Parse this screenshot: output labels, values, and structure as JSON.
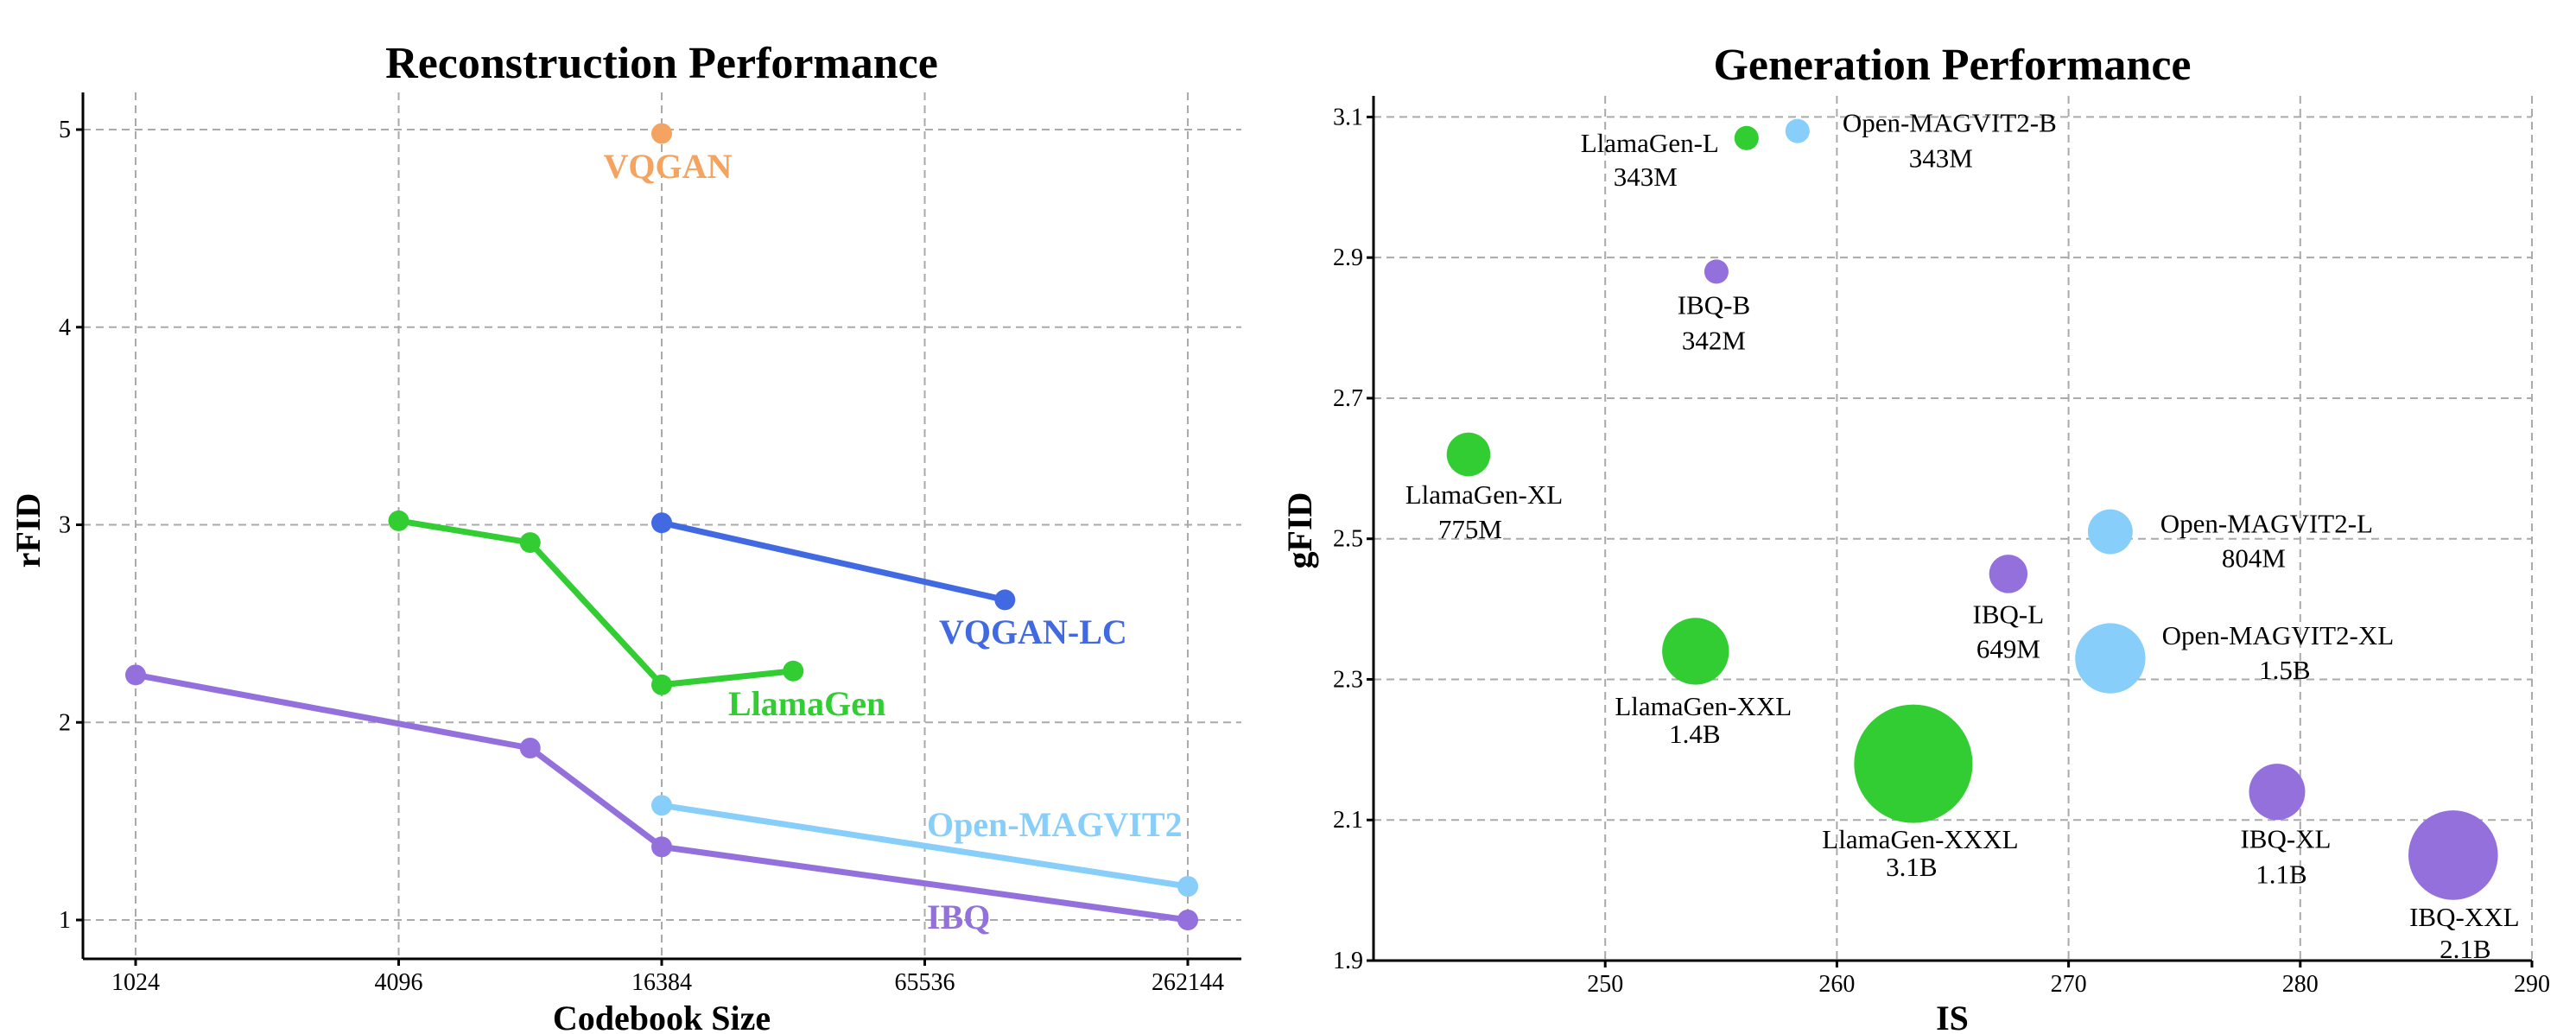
{
  "chart_data": [
    {
      "type": "line",
      "title": "Reconstruction Performance",
      "xlabel": "Codebook Size",
      "ylabel": "rFID",
      "xscale": "log2",
      "xticks": [
        1024,
        4096,
        16384,
        65536,
        262144
      ],
      "xtick_labels": [
        "1024",
        "4096",
        "16384",
        "65536",
        "262144"
      ],
      "yticks": [
        1,
        2,
        3,
        4,
        5
      ],
      "xlim": [
        790,
        340000
      ],
      "ylim": [
        0.8,
        5.2
      ],
      "grid": true,
      "series": [
        {
          "name": "VQGAN",
          "color": "#f4a460",
          "x": [
            16384
          ],
          "y": [
            4.98
          ]
        },
        {
          "name": "VQGAN-LC",
          "color": "#4169e1",
          "x": [
            16384,
            100000
          ],
          "y": [
            3.01,
            2.62
          ]
        },
        {
          "name": "LlamaGen",
          "color": "#32cd32",
          "x": [
            4096,
            8192,
            16384,
            32768
          ],
          "y": [
            3.02,
            2.91,
            2.19,
            2.26
          ]
        },
        {
          "name": "Open-MAGVIT2",
          "color": "#87cefa",
          "x": [
            16384,
            262144
          ],
          "y": [
            1.58,
            1.17
          ]
        },
        {
          "name": "IBQ",
          "color": "#9370db",
          "x": [
            1024,
            8192,
            16384,
            262144
          ],
          "y": [
            2.24,
            1.87,
            1.37,
            1.0
          ]
        }
      ]
    },
    {
      "type": "scatter",
      "title": "Generation Performance",
      "xlabel": "IS",
      "ylabel": "gFID",
      "xticks": [
        250,
        260,
        270,
        280,
        290
      ],
      "yticks": [
        1.9,
        2.1,
        2.3,
        2.5,
        2.7,
        2.9,
        3.1
      ],
      "xlim": [
        240,
        290
      ],
      "ylim": [
        1.9,
        3.13
      ],
      "grid": true,
      "points": [
        {
          "name": "LlamaGen-L",
          "size": "343M",
          "params_m": 343,
          "x": 256.1,
          "y": 3.07,
          "color": "#32cd32"
        },
        {
          "name": "Open-MAGVIT2-B",
          "size": "343M",
          "params_m": 343,
          "x": 258.3,
          "y": 3.08,
          "color": "#87cefa"
        },
        {
          "name": "IBQ-B",
          "size": "342M",
          "params_m": 342,
          "x": 254.8,
          "y": 2.88,
          "color": "#9370db"
        },
        {
          "name": "LlamaGen-XL",
          "size": "775M",
          "params_m": 775,
          "x": 244.1,
          "y": 2.62,
          "color": "#32cd32"
        },
        {
          "name": "Open-MAGVIT2-L",
          "size": "804M",
          "params_m": 804,
          "x": 271.8,
          "y": 2.51,
          "color": "#87cefa"
        },
        {
          "name": "IBQ-L",
          "size": "649M",
          "params_m": 649,
          "x": 267.4,
          "y": 2.45,
          "color": "#9370db"
        },
        {
          "name": "LlamaGen-XXL",
          "size": "1.4B",
          "params_m": 1400,
          "x": 253.9,
          "y": 2.34,
          "color": "#32cd32"
        },
        {
          "name": "Open-MAGVIT2-XL",
          "size": "1.5B",
          "params_m": 1500,
          "x": 271.8,
          "y": 2.33,
          "color": "#87cefa"
        },
        {
          "name": "LlamaGen-XXXL",
          "size": "3.1B",
          "params_m": 3100,
          "x": 263.3,
          "y": 2.18,
          "color": "#32cd32"
        },
        {
          "name": "IBQ-XL",
          "size": "1.1B",
          "params_m": 1100,
          "x": 279.0,
          "y": 2.14,
          "color": "#9370db"
        },
        {
          "name": "IBQ-XXL",
          "size": "2.1B",
          "params_m": 2100,
          "x": 286.6,
          "y": 2.05,
          "color": "#9370db"
        }
      ]
    }
  ]
}
